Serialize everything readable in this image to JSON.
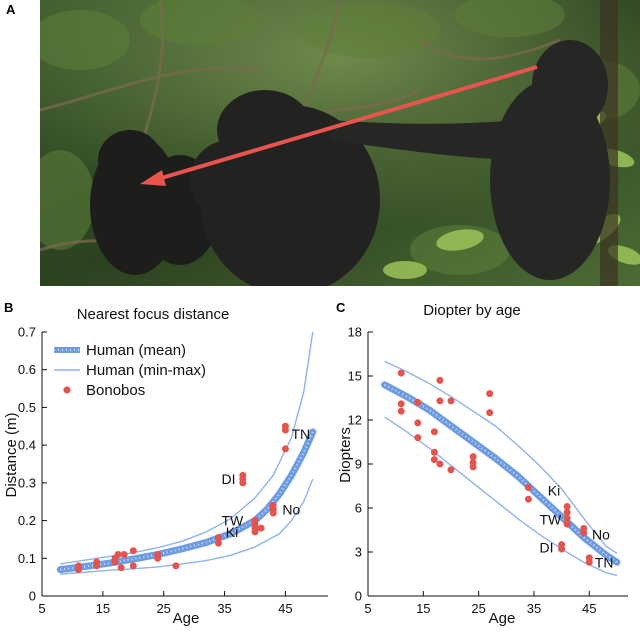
{
  "panels": {
    "a_letter": "A",
    "b_letter": "B",
    "c_letter": "C"
  },
  "colors": {
    "human_mean": "#6f9be0",
    "human_range": "#8fb3ee",
    "bonobo": "#e2554f",
    "arrow": "#e8554f"
  },
  "chart_data": [
    {
      "type": "scatter",
      "title": "Nearest focus distance",
      "xlabel": "Age",
      "ylabel": "Distance (m)",
      "xlim": [
        5,
        52
      ],
      "ylim": [
        0,
        0.7
      ],
      "xticks": [
        5,
        15,
        25,
        35,
        45
      ],
      "yticks": [
        0,
        0.1,
        0.2,
        0.3,
        0.4,
        0.5,
        0.6,
        0.7
      ],
      "legend": {
        "placement": "top-left",
        "entries": [
          "Human (mean)",
          "Human (min-max)",
          "Bonobos"
        ]
      },
      "series": [
        {
          "name": "Human (mean)",
          "style": "thick-dotted-line",
          "x": [
            8,
            12,
            16,
            20,
            24,
            28,
            32,
            36,
            40,
            42,
            44,
            46,
            48,
            49.5
          ],
          "y": [
            0.07,
            0.078,
            0.087,
            0.098,
            0.11,
            0.125,
            0.142,
            0.165,
            0.2,
            0.23,
            0.27,
            0.32,
            0.38,
            0.435
          ]
        },
        {
          "name": "Human (min-max)",
          "style": "thin-line",
          "x": [
            8,
            12,
            16,
            20,
            24,
            28,
            32,
            36,
            40,
            43,
            46,
            48,
            49.5
          ],
          "y": [
            0.085,
            0.095,
            0.105,
            0.115,
            0.128,
            0.145,
            0.17,
            0.205,
            0.26,
            0.32,
            0.42,
            0.54,
            0.7
          ]
        },
        {
          "name": "Human (min-max)",
          "style": "thin-line",
          "x": [
            8,
            12,
            16,
            20,
            24,
            28,
            32,
            36,
            40,
            44,
            46,
            48,
            49.5
          ],
          "y": [
            0.058,
            0.063,
            0.068,
            0.072,
            0.077,
            0.085,
            0.094,
            0.108,
            0.13,
            0.165,
            0.2,
            0.25,
            0.31
          ]
        },
        {
          "name": "Bonobos",
          "style": "points",
          "points": [
            [
              11,
              0.07
            ],
            [
              11,
              0.08
            ],
            [
              14,
              0.08
            ],
            [
              14,
              0.09
            ],
            [
              17,
              0.09
            ],
            [
              17,
              0.1
            ],
            [
              17.5,
              0.11
            ],
            [
              18,
              0.075
            ],
            [
              18.5,
              0.11
            ],
            [
              20,
              0.08
            ],
            [
              20,
              0.12
            ],
            [
              24,
              0.1
            ],
            [
              24,
              0.11
            ],
            [
              27,
              0.08
            ],
            [
              34,
              0.14
            ],
            [
              34,
              0.155
            ],
            [
              38,
              0.3
            ],
            [
              38,
              0.32
            ],
            [
              38,
              0.31
            ],
            [
              40,
              0.18
            ],
            [
              40,
              0.2
            ],
            [
              40,
              0.19
            ],
            [
              40,
              0.17
            ],
            [
              41,
              0.18
            ],
            [
              43,
              0.22
            ],
            [
              43,
              0.23
            ],
            [
              43,
              0.24
            ],
            [
              45,
              0.39
            ],
            [
              45,
              0.45
            ],
            [
              45,
              0.44
            ]
          ]
        }
      ],
      "annotations": [
        {
          "text": "TN",
          "x": 46,
          "y": 0.43
        },
        {
          "text": "DI",
          "x": 34.5,
          "y": 0.31
        },
        {
          "text": "No",
          "x": 44.5,
          "y": 0.23
        },
        {
          "text": "TW",
          "x": 34.5,
          "y": 0.2
        },
        {
          "text": "Ki",
          "x": 35.2,
          "y": 0.17
        }
      ]
    },
    {
      "type": "scatter",
      "title": "Diopter by age",
      "xlabel": "Age",
      "ylabel": "Diopters",
      "xlim": [
        5,
        52
      ],
      "ylim": [
        0,
        18
      ],
      "xticks": [
        5,
        15,
        25,
        35,
        45
      ],
      "yticks": [
        0,
        3,
        6,
        9,
        12,
        15,
        18
      ],
      "series": [
        {
          "name": "Human (mean)",
          "style": "thick-dotted-line",
          "x": [
            8,
            12,
            16,
            20,
            24,
            28,
            32,
            36,
            40,
            44,
            48,
            50
          ],
          "y": [
            14.4,
            13.6,
            12.7,
            11.6,
            10.5,
            9.4,
            8.2,
            6.8,
            5.4,
            4.0,
            2.8,
            2.3
          ]
        },
        {
          "name": "Human (min-max)",
          "style": "thin-line",
          "x": [
            8,
            12,
            16,
            20,
            24,
            28,
            32,
            36,
            40,
            44,
            48,
            50
          ],
          "y": [
            16.0,
            15.3,
            14.5,
            13.6,
            12.6,
            11.6,
            10.3,
            8.9,
            7.3,
            5.3,
            3.4,
            2.9
          ]
        },
        {
          "name": "Human (min-max)",
          "style": "thin-line",
          "x": [
            8,
            12,
            16,
            20,
            24,
            28,
            32,
            36,
            40,
            44,
            48,
            50
          ],
          "y": [
            12.2,
            11.2,
            10.1,
            8.9,
            7.7,
            6.5,
            5.3,
            4.2,
            3.2,
            2.3,
            1.6,
            1.4
          ]
        },
        {
          "name": "Bonobos",
          "style": "points",
          "points": [
            [
              11,
              15.2
            ],
            [
              11,
              13.1
            ],
            [
              11,
              12.6
            ],
            [
              14,
              13.2
            ],
            [
              14,
              11.8
            ],
            [
              14,
              10.8
            ],
            [
              17,
              11.2
            ],
            [
              17,
              9.8
            ],
            [
              17,
              9.3
            ],
            [
              18,
              14.7
            ],
            [
              18,
              13.3
            ],
            [
              18,
              9.0
            ],
            [
              20,
              13.3
            ],
            [
              20,
              8.6
            ],
            [
              24,
              9.5
            ],
            [
              24,
              9.1
            ],
            [
              24,
              8.8
            ],
            [
              27,
              13.8
            ],
            [
              27,
              12.5
            ],
            [
              34,
              7.4
            ],
            [
              34,
              6.6
            ],
            [
              40,
              3.2
            ],
            [
              40,
              3.5
            ],
            [
              41,
              6.1
            ],
            [
              41,
              5.7
            ],
            [
              41,
              5.3
            ],
            [
              41,
              4.9
            ],
            [
              44,
              4.6
            ],
            [
              44,
              4.3
            ],
            [
              45,
              2.6
            ],
            [
              45,
              2.3
            ]
          ]
        }
      ],
      "annotations": [
        {
          "text": "Ki",
          "x": 37.5,
          "y": 7.2
        },
        {
          "text": "TW",
          "x": 36,
          "y": 5.2
        },
        {
          "text": "No",
          "x": 45.5,
          "y": 4.2
        },
        {
          "text": "DI",
          "x": 36,
          "y": 3.3
        },
        {
          "text": "TN",
          "x": 46,
          "y": 2.3
        }
      ]
    }
  ]
}
